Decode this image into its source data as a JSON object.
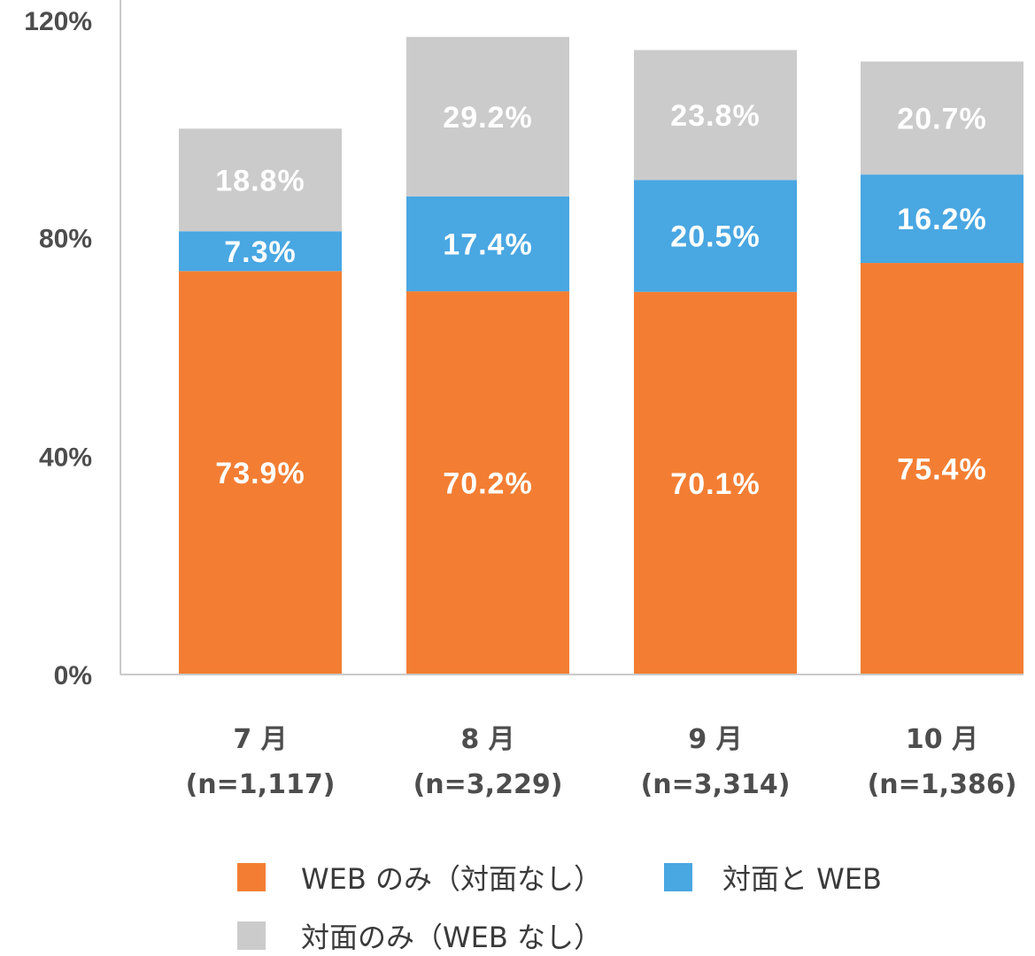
{
  "chart_data": {
    "type": "bar",
    "stacked": true,
    "categories": [
      "7 月",
      "8 月",
      "9 月",
      "10 月"
    ],
    "category_sublabels": [
      "(n=1,117)",
      "(n=3,229)",
      "(n=3,314)",
      "(n=1,386)"
    ],
    "series": [
      {
        "name": "WEB のみ（対面なし）",
        "color": "#f37e33",
        "values": [
          73.9,
          70.2,
          70.1,
          75.4
        ],
        "labels": [
          "73.9%",
          "70.2%",
          "70.1%",
          "75.4%"
        ]
      },
      {
        "name": "対面と WEB",
        "color": "#49a7e2",
        "values": [
          7.3,
          17.4,
          20.5,
          16.2
        ],
        "labels": [
          "7.3%",
          "17.4%",
          "20.5%",
          "16.2%"
        ]
      },
      {
        "name": "対面のみ（WEB なし）",
        "color": "#cbcbcb",
        "values": [
          18.8,
          29.2,
          23.8,
          20.7
        ],
        "labels": [
          "18.8%",
          "29.2%",
          "23.8%",
          "20.7%"
        ]
      }
    ],
    "ylim": [
      0,
      120
    ],
    "yticks": [
      0,
      40,
      80,
      120
    ],
    "ytick_labels": [
      "0%",
      "40%",
      "80%",
      "120%"
    ],
    "grid": false,
    "legend_position": "bottom"
  }
}
